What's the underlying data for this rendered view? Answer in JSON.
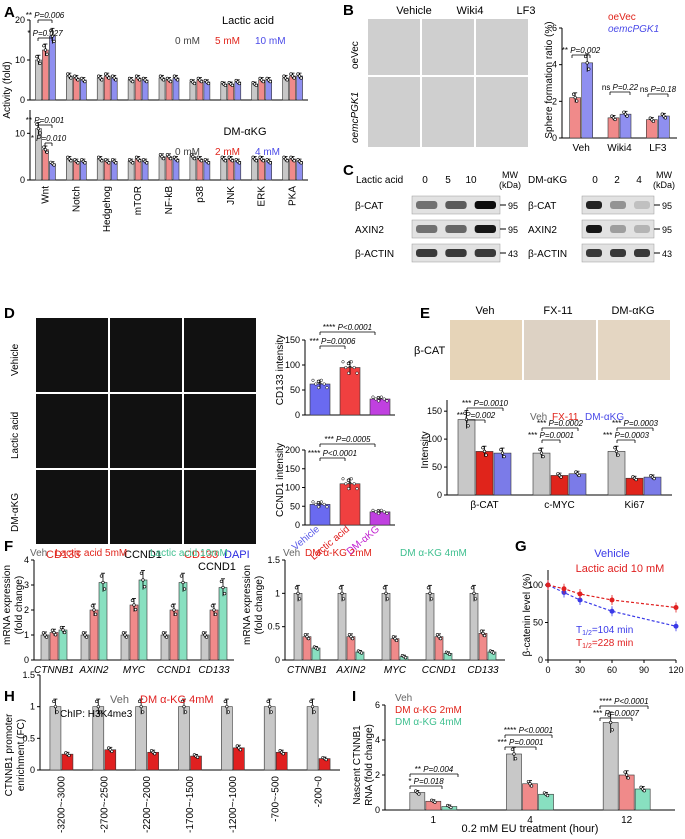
{
  "panels": {
    "A": "A",
    "B": "B",
    "C": "C",
    "D": "D",
    "E": "E",
    "F": "F",
    "G": "G",
    "H": "H",
    "I": "I"
  },
  "colors": {
    "gray": "#c8c8c8",
    "red": "#f08a8a",
    "blue": "#8f8ff0",
    "teal": "#88e0c0",
    "darkred": "#e0241b",
    "pvblue": "#4a4ae8",
    "purple": "#c040e0",
    "lightblue": "#7b7be8"
  },
  "panelA": {
    "ylabel": "Activity (fold)",
    "top": {
      "legend_title": "Lactic acid",
      "doses": [
        "0 mM",
        "5 mM",
        "10 mM"
      ],
      "stat1": "**",
      "stat1p": "P=0.006",
      "stat2": "*",
      "stat2p": "P=0.027",
      "yticks": [
        "0",
        "10",
        "20"
      ]
    },
    "bottom": {
      "legend_title": "DM-αKG",
      "doses": [
        "0 mM",
        "2 mM",
        "4 mM"
      ],
      "stat1": "**",
      "stat1p": "P=0.001",
      "stat2": "*",
      "stat2p": "P=0.010",
      "yticks": [
        "0",
        "10"
      ]
    },
    "categories": [
      "Wnt",
      "Notch",
      "Hedgehog",
      "mTOR",
      "NF-kB",
      "p38",
      "JNK",
      "ERK",
      "PKA"
    ]
  },
  "panelB": {
    "columns": [
      "Vehicle",
      "Wiki4",
      "LF3"
    ],
    "rows": [
      "oeVec",
      "oemcPGK1"
    ],
    "ylabel": "Sphere formation ratio (%)",
    "legend": [
      "oeVec",
      "oemcPGK1"
    ],
    "categories": [
      "Veh",
      "Wiki4",
      "LF3"
    ],
    "yticks": [
      "0",
      "2",
      "4",
      "6"
    ],
    "stats": [
      {
        "s": "**",
        "p": "P=0.002"
      },
      {
        "s": "ns",
        "p": "P=0.22"
      },
      {
        "s": "ns",
        "p": "P=0.18"
      }
    ]
  },
  "panelC": {
    "left": {
      "header": "Lactic acid",
      "doses": [
        "0",
        "5",
        "10"
      ],
      "rows": [
        "β-CAT",
        "AXIN2",
        "β-ACTIN"
      ],
      "mw": [
        "95",
        "95",
        "43"
      ]
    },
    "right": {
      "header": "DM-αKG",
      "doses": [
        "0",
        "2",
        "4"
      ],
      "rows": [
        "β-CAT",
        "AXIN2",
        "β-ACTIN"
      ],
      "mw": [
        "95",
        "95",
        "43"
      ]
    },
    "mw_label": "MW",
    "kda_label": "(kDa)"
  },
  "panelD": {
    "rows": [
      "Vehicle",
      "Lactic acid",
      "DM-αKG"
    ],
    "bottom_labels": [
      "CD133",
      "CCND1",
      "CD133",
      "DAPI",
      "CCND1"
    ],
    "top_chart": {
      "ylabel": "CD133 intensity",
      "yticks": [
        "0",
        "50",
        "100",
        "150"
      ],
      "stats": [
        {
          "s": "****",
          "p": "P<0.0001"
        },
        {
          "s": "***",
          "p": "P=0.0006"
        }
      ]
    },
    "bottom_chart": {
      "ylabel": "CCND1 intensity",
      "yticks": [
        "0",
        "50",
        "100",
        "150",
        "200"
      ],
      "stats": [
        {
          "s": "***",
          "p": "P=0.0005"
        },
        {
          "s": "****",
          "p": "P<0.0001"
        }
      ]
    },
    "categories": [
      "Vehicle",
      "Lactic acid",
      "DM-αKG"
    ]
  },
  "panelE": {
    "columns": [
      "Veh",
      "FX-11",
      "DM-αKG"
    ],
    "row_label": "β-CAT",
    "ylabel": "Intensity",
    "legend": [
      "Veh",
      "FX-11",
      "DM-αKG"
    ],
    "categories": [
      "β-CAT",
      "c-MYC",
      "Ki67"
    ],
    "yticks": [
      "0",
      "50",
      "100",
      "150"
    ],
    "stats": [
      {
        "s": "***",
        "p": "P=0.0010"
      },
      {
        "s": "**",
        "p": "P=0.002"
      },
      {
        "s": "***",
        "p": "P=0.0002"
      },
      {
        "s": "***",
        "p": "P=0.0001"
      },
      {
        "s": "***",
        "p": "P=0.0003"
      },
      {
        "s": "***",
        "p": "P=0.0003"
      }
    ]
  },
  "panelF": {
    "ylabel1": "mRNA expression",
    "ylabel2": "(fold change)",
    "left": {
      "legend": [
        "Veh",
        "Lactic acid 5mM",
        "Lactic acid 10mM"
      ],
      "yticks": [
        "0",
        "1",
        "2",
        "3",
        "4"
      ]
    },
    "right": {
      "legend": [
        "Veh",
        "DM α-KG 2mM",
        "DM α-KG 4mM"
      ],
      "yticks": [
        "0",
        "0.5",
        "1",
        "1.5"
      ]
    },
    "genes": [
      "CTNNB1",
      "AXIN2",
      "MYC",
      "CCND1",
      "CD133"
    ]
  },
  "panelG": {
    "legend": [
      "Vehicle",
      "Lactic acid 10 mM"
    ],
    "ylabel": "β-catenin level (%)",
    "yticks": [
      "0",
      "50",
      "100"
    ],
    "xticks": [
      "0",
      "30",
      "60",
      "90",
      "120"
    ],
    "t1": "T",
    "t1sub": "1/2",
    "t1val": "=104 min",
    "t2": "T",
    "t2sub": "1/2",
    "t2val": "=228 min"
  },
  "panelH": {
    "legend": [
      "Veh",
      "DM α-KG 4mM"
    ],
    "chip": "ChIP: H3K4me3",
    "ylabel1": "CTNNB1 promoter",
    "ylabel2": "enrichment (FC)",
    "yticks": [
      "0",
      "0.5",
      "1",
      "1.5"
    ],
    "categories": [
      "-3200~-3000",
      "-2700~-2500",
      "-2200~-2000",
      "-1700~-1500",
      "-1200~-1000",
      "-700~-500",
      "-200~0"
    ]
  },
  "panelI": {
    "legend": [
      "Veh",
      "DM α-KG 2mM",
      "DM α-KG 4mM"
    ],
    "ylabel1": "Nascent CTNNB1",
    "ylabel2": "RNA (fold change)",
    "xlabel": "0.2 mM EU treatment (hour)",
    "categories": [
      "1",
      "4",
      "12"
    ],
    "yticks": [
      "0",
      "2",
      "4",
      "6"
    ],
    "stats": [
      {
        "s": "*",
        "p": "P=0.018"
      },
      {
        "s": "**",
        "p": "P=0.004"
      },
      {
        "s": "***",
        "p": "P=0.0001"
      },
      {
        "s": "****",
        "p": "P<0.0001"
      },
      {
        "s": "***",
        "p": "P=0.0007"
      },
      {
        "s": "****",
        "p": "P<0.0001"
      }
    ]
  },
  "chart_data": [
    {
      "panel": "A-top",
      "type": "bar",
      "categories": [
        "Wnt",
        "Notch",
        "Hedgehog",
        "mTOR",
        "NF-kB",
        "p38",
        "JNK",
        "ERK",
        "PKA"
      ],
      "series": [
        {
          "name": "0 mM",
          "values": [
            10,
            6,
            5.5,
            5,
            5.5,
            4.5,
            4,
            4,
            5.5
          ]
        },
        {
          "name": "5 mM",
          "values": [
            12.5,
            5.5,
            6,
            5.5,
            5,
            5,
            4,
            5,
            6
          ]
        },
        {
          "name": "10 mM",
          "values": [
            16,
            5,
            5.5,
            5,
            5.5,
            4.5,
            4.5,
            5,
            6
          ]
        }
      ],
      "ylim": [
        0,
        20
      ]
    },
    {
      "panel": "A-bottom",
      "type": "bar",
      "categories": [
        "Wnt",
        "Notch",
        "Hedgehog",
        "mTOR",
        "NF-kB",
        "p38",
        "JNK",
        "ERK",
        "PKA"
      ],
      "series": [
        {
          "name": "0 mM",
          "values": [
            11,
            4.5,
            4.5,
            4,
            5,
            5,
            4.5,
            4.5,
            4.5
          ]
        },
        {
          "name": "2 mM",
          "values": [
            6.5,
            4,
            4,
            4.5,
            5,
            4.5,
            4.5,
            4.5,
            4.5
          ]
        },
        {
          "name": "4 mM",
          "values": [
            3.5,
            4,
            4,
            4,
            4.5,
            4,
            4,
            4,
            4
          ]
        }
      ],
      "ylim": [
        0,
        15
      ]
    },
    {
      "panel": "B",
      "type": "bar",
      "categories": [
        "Veh",
        "Wiki4",
        "LF3"
      ],
      "series": [
        {
          "name": "oeVec",
          "values": [
            2.2,
            1.1,
            1.0
          ]
        },
        {
          "name": "oemcPGK1",
          "values": [
            4.1,
            1.3,
            1.2
          ]
        }
      ],
      "ylim": [
        0,
        6
      ]
    },
    {
      "panel": "D-top",
      "type": "bar",
      "categories": [
        "Vehicle",
        "Lactic acid",
        "DM-αKG"
      ],
      "values": [
        62,
        95,
        32
      ],
      "ylim": [
        0,
        150
      ]
    },
    {
      "panel": "D-bottom",
      "type": "bar",
      "categories": [
        "Vehicle",
        "Lactic acid",
        "DM-αKG"
      ],
      "values": [
        55,
        110,
        35
      ],
      "ylim": [
        0,
        200
      ]
    },
    {
      "panel": "E",
      "type": "bar",
      "categories": [
        "β-CAT",
        "c-MYC",
        "Ki67"
      ],
      "series": [
        {
          "name": "Veh",
          "values": [
            135,
            75,
            78
          ]
        },
        {
          "name": "FX-11",
          "values": [
            78,
            35,
            30
          ]
        },
        {
          "name": "DM-αKG",
          "values": [
            75,
            38,
            32
          ]
        }
      ],
      "ylim": [
        0,
        170
      ]
    },
    {
      "panel": "F-left",
      "type": "bar",
      "categories": [
        "CTNNB1",
        "AXIN2",
        "MYC",
        "CCND1",
        "CD133"
      ],
      "series": [
        {
          "name": "Veh",
          "values": [
            1,
            1,
            1,
            1,
            1
          ]
        },
        {
          "name": "Lactic acid 5mM",
          "values": [
            1.1,
            2,
            2.2,
            2,
            2
          ]
        },
        {
          "name": "Lactic acid 10mM",
          "values": [
            1.2,
            3.1,
            3.2,
            3.1,
            2.9
          ]
        }
      ],
      "ylim": [
        0,
        4
      ]
    },
    {
      "panel": "F-right",
      "type": "bar",
      "categories": [
        "CTNNB1",
        "AXIN2",
        "MYC",
        "CCND1",
        "CD133"
      ],
      "series": [
        {
          "name": "Veh",
          "values": [
            1,
            1,
            1,
            1,
            1
          ]
        },
        {
          "name": "DM α-KG 2mM",
          "values": [
            0.35,
            0.35,
            0.32,
            0.35,
            0.4
          ]
        },
        {
          "name": "DM α-KG 4mM",
          "values": [
            0.18,
            0.12,
            0.05,
            0.1,
            0.12
          ]
        }
      ],
      "ylim": [
        0,
        1.5
      ]
    },
    {
      "panel": "G",
      "type": "line",
      "x": [
        0,
        15,
        30,
        60,
        120
      ],
      "series": [
        {
          "name": "Vehicle",
          "values": [
            100,
            90,
            80,
            65,
            45
          ]
        },
        {
          "name": "Lactic acid 10 mM",
          "values": [
            100,
            95,
            88,
            80,
            70
          ]
        }
      ],
      "xlim": [
        0,
        120
      ],
      "ylim": [
        0,
        120
      ]
    },
    {
      "panel": "H",
      "type": "bar",
      "categories": [
        "-3200~-3000",
        "-2700~-2500",
        "-2200~-2000",
        "-1700~-1500",
        "-1200~-1000",
        "-700~-500",
        "-200~0"
      ],
      "series": [
        {
          "name": "Veh",
          "values": [
            1,
            1,
            1,
            1,
            1,
            1,
            1
          ]
        },
        {
          "name": "DM α-KG 4mM",
          "values": [
            0.25,
            0.32,
            0.28,
            0.22,
            0.35,
            0.28,
            0.18
          ]
        }
      ],
      "ylim": [
        0,
        1.5
      ]
    },
    {
      "panel": "I",
      "type": "bar",
      "categories": [
        "1",
        "4",
        "12"
      ],
      "series": [
        {
          "name": "Veh",
          "values": [
            1,
            3.2,
            5
          ]
        },
        {
          "name": "DM α-KG 2mM",
          "values": [
            0.5,
            1.5,
            2
          ]
        },
        {
          "name": "DM α-KG 4mM",
          "values": [
            0.2,
            0.9,
            1.2
          ]
        }
      ],
      "ylim": [
        0,
        6
      ]
    }
  ]
}
